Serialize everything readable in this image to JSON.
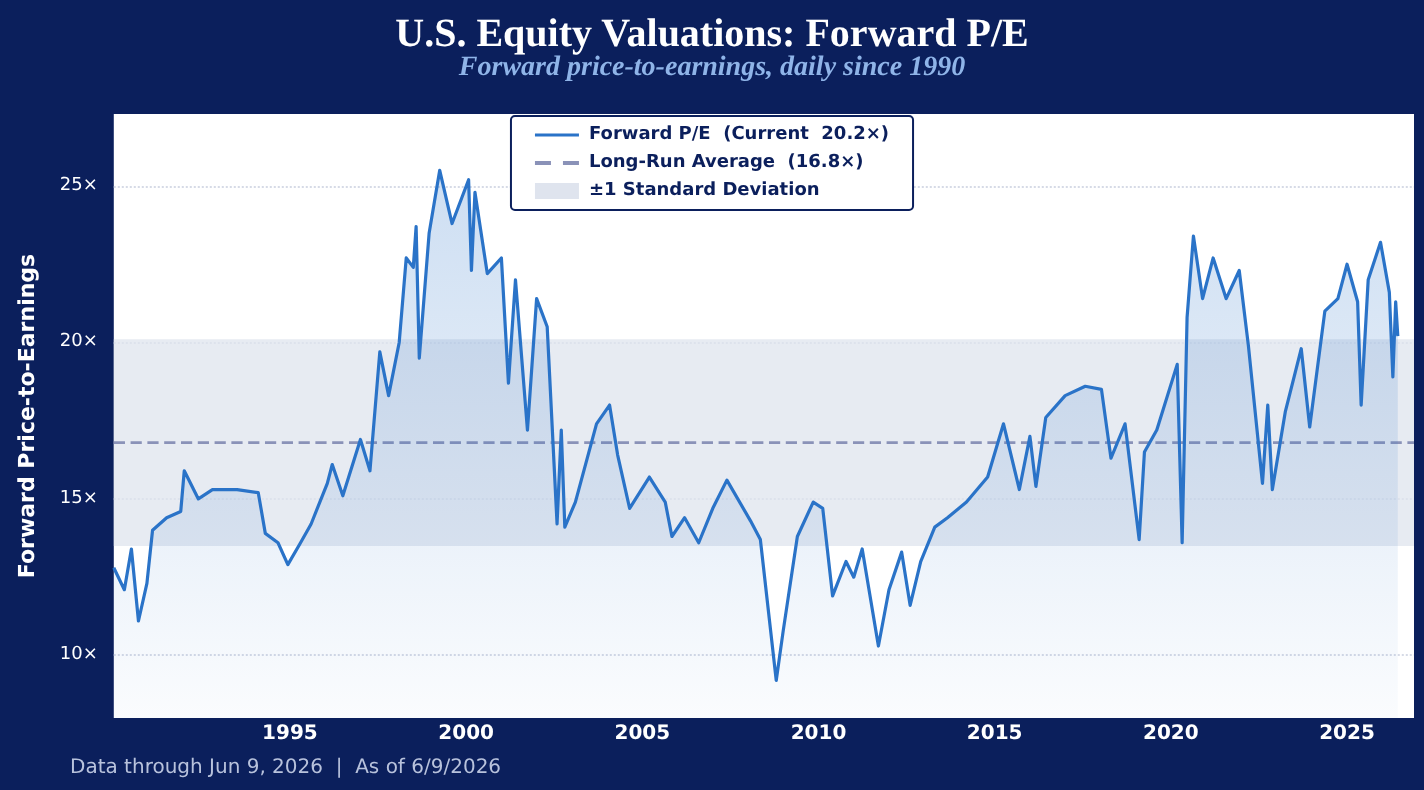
{
  "chart_data": {
    "type": "area",
    "title": "U.S. Equity Valuations: Forward P/E",
    "subtitle": "Forward price-to-earnings, daily since 1990",
    "ylabel": "Forward Price-to-Earnings",
    "annotations": [
      "Data through Jun 9, 2026  |  As of 6/9/2026"
    ],
    "x": [
      1990.0,
      1990.3,
      1990.5,
      1990.7,
      1990.94,
      1991.1,
      1991.5,
      1991.9,
      1992.0,
      1992.4,
      1992.8,
      1993.5,
      1994.1,
      1994.3,
      1994.66,
      1994.94,
      1995.3,
      1995.6,
      1996.06,
      1996.2,
      1996.5,
      1997.0,
      1997.27,
      1997.55,
      1997.8,
      1998.1,
      1998.3,
      1998.5,
      1998.58,
      1998.67,
      1998.95,
      1999.25,
      1999.6,
      2000.07,
      2000.15,
      2000.25,
      2000.6,
      2001.0,
      2001.2,
      2001.4,
      2001.74,
      2002.0,
      2002.3,
      2002.58,
      2002.7,
      2002.8,
      2003.1,
      2003.7,
      2004.07,
      2004.3,
      2004.64,
      2005.2,
      2005.65,
      2005.84,
      2006.2,
      2006.6,
      2007.0,
      2007.4,
      2008.07,
      2008.35,
      2008.8,
      2009.0,
      2009.4,
      2009.85,
      2010.12,
      2010.4,
      2010.78,
      2011.0,
      2011.24,
      2011.7,
      2012.0,
      2012.36,
      2012.6,
      2012.9,
      2013.3,
      2013.66,
      2014.2,
      2014.8,
      2015.25,
      2015.7,
      2016.0,
      2016.17,
      2016.45,
      2017.0,
      2017.57,
      2018.03,
      2018.3,
      2018.7,
      2019.1,
      2019.25,
      2019.6,
      2020.18,
      2020.32,
      2020.46,
      2020.64,
      2020.9,
      2021.2,
      2021.57,
      2021.94,
      2022.2,
      2022.6,
      2022.75,
      2022.88,
      2023.25,
      2023.7,
      2023.94,
      2024.37,
      2024.74,
      2025.0,
      2025.3,
      2025.4,
      2025.6,
      2025.95,
      2026.2,
      2026.3,
      2026.38,
      2026.44
    ],
    "series": [
      {
        "name": "Forward P/E  (Current  20.2×)",
        "color": "#2a73c8",
        "values": [
          12.8,
          12.1,
          13.4,
          11.1,
          12.3,
          14.0,
          14.4,
          14.6,
          15.9,
          15.0,
          15.3,
          15.3,
          15.2,
          13.9,
          13.6,
          12.9,
          13.6,
          14.2,
          15.5,
          16.1,
          15.1,
          16.9,
          15.9,
          19.7,
          18.3,
          20.0,
          22.7,
          22.4,
          23.7,
          19.5,
          23.5,
          25.5,
          23.8,
          25.2,
          22.3,
          24.8,
          22.2,
          22.7,
          18.7,
          22.0,
          17.2,
          21.4,
          20.5,
          14.2,
          17.2,
          14.1,
          14.9,
          17.4,
          18.0,
          16.4,
          14.7,
          15.7,
          14.9,
          13.8,
          14.4,
          13.6,
          14.7,
          15.6,
          14.3,
          13.7,
          9.2,
          10.8,
          13.8,
          14.9,
          14.7,
          11.9,
          13.0,
          12.5,
          13.4,
          10.3,
          12.1,
          13.3,
          11.6,
          13.0,
          14.1,
          14.4,
          14.9,
          15.7,
          17.4,
          15.3,
          17.0,
          15.4,
          17.6,
          18.3,
          18.6,
          18.5,
          16.3,
          17.4,
          13.7,
          16.5,
          17.2,
          19.3,
          13.6,
          20.8,
          23.4,
          21.4,
          22.7,
          21.4,
          22.3,
          19.9,
          15.5,
          18.0,
          15.3,
          17.8,
          19.8,
          17.3,
          21.0,
          21.4,
          22.5,
          21.3,
          18.0,
          22.0,
          23.2,
          21.6,
          18.9,
          21.3,
          20.2
        ]
      }
    ],
    "ref_lines": [
      {
        "axis": "y",
        "value": 16.8,
        "label": "Long-Run Average  (16.8×)",
        "color": "#8a92b8",
        "line_style": "dashed"
      }
    ],
    "bands": [
      {
        "axis": "y",
        "from": 13.5,
        "to": 20.1,
        "label": "±1 Standard Deviation",
        "color": "#dfe4ee"
      }
    ],
    "xlim": [
      1990,
      2026.9
    ],
    "xticks": [
      1995,
      2000,
      2005,
      2010,
      2015,
      2020,
      2025
    ],
    "ylim": [
      8,
      27.3
    ],
    "yticks": [
      {
        "value": 10,
        "label": "10×"
      },
      {
        "value": 15,
        "label": "15×"
      },
      {
        "value": 20,
        "label": "20×"
      },
      {
        "value": 25,
        "label": "25×"
      }
    ],
    "grid": "y",
    "legend": "top",
    "line_style": "solid"
  }
}
